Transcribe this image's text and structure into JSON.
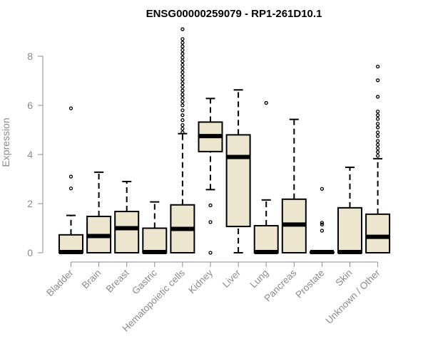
{
  "chart_data": {
    "type": "boxplot",
    "title": "ENSG00000259079 - RP1-261D10.1",
    "xlabel": "",
    "ylabel": "Expression",
    "ylim": [
      0,
      9.2
    ],
    "yticks": [
      0,
      2,
      4,
      6,
      8
    ],
    "grid": false,
    "legend": "none",
    "box_fill": "#ede6cf",
    "box_stroke": "#000000",
    "axis_color": "#8c8c8c",
    "categories": [
      "Bladder",
      "Brain",
      "Breast",
      "Gastric",
      "Hematopoietic cells",
      "Kidney",
      "Liver",
      "Lung",
      "Pancreas",
      "Prostate",
      "Skin",
      "Unknown / Other"
    ],
    "boxes": [
      {
        "whislo": 0,
        "q1": 0,
        "med": 0.03,
        "q3": 0.73,
        "whishi": 1.52,
        "fliers": [
          2.62,
          3.1,
          5.88
        ]
      },
      {
        "whislo": 0,
        "q1": 0,
        "med": 0.68,
        "q3": 1.48,
        "whishi": 3.28,
        "fliers": []
      },
      {
        "whislo": 0,
        "q1": 0,
        "med": 1.0,
        "q3": 1.68,
        "whishi": 2.9,
        "fliers": []
      },
      {
        "whislo": 0,
        "q1": 0,
        "med": 0.03,
        "q3": 1.0,
        "whishi": 2.07,
        "fliers": []
      },
      {
        "whislo": 0,
        "q1": 0,
        "med": 0.97,
        "q3": 1.95,
        "whishi": 4.85,
        "fliers": [
          4.9,
          5.05,
          5.2,
          5.4,
          5.6,
          5.8,
          6.0,
          6.15,
          6.3,
          6.45,
          6.6,
          6.75,
          6.9,
          7.05,
          7.2,
          7.35,
          7.5,
          7.65,
          7.8,
          7.95,
          8.1,
          8.25,
          8.4,
          8.55,
          8.7,
          9.1
        ]
      },
      {
        "whislo": 2.57,
        "q1": 4.12,
        "med": 4.75,
        "q3": 5.32,
        "whishi": 6.28,
        "fliers": [
          0,
          1.25,
          1.93
        ]
      },
      {
        "whislo": 0,
        "q1": 1.07,
        "med": 3.9,
        "q3": 4.8,
        "whishi": 6.63,
        "fliers": []
      },
      {
        "whislo": 0,
        "q1": 0,
        "med": 0.03,
        "q3": 1.1,
        "whishi": 2.15,
        "fliers": [
          6.1
        ]
      },
      {
        "whislo": 0,
        "q1": 0,
        "med": 1.15,
        "q3": 2.18,
        "whishi": 5.43,
        "fliers": []
      },
      {
        "whislo": 0,
        "q1": 0,
        "med": 0.03,
        "q3": 0.03,
        "whishi": 0.03,
        "fliers": [
          0.9,
          1.15,
          1.22,
          2.6
        ]
      },
      {
        "whislo": 0,
        "q1": 0,
        "med": 0.03,
        "q3": 1.83,
        "whishi": 3.48,
        "fliers": []
      },
      {
        "whislo": 0,
        "q1": 0,
        "med": 0.65,
        "q3": 1.57,
        "whishi": 3.83,
        "fliers": [
          3.95,
          4.1,
          4.25,
          4.4,
          4.55,
          4.75,
          4.9,
          5.1,
          5.25,
          5.45,
          5.6,
          5.75,
          6.35,
          7.02,
          7.58
        ]
      }
    ]
  }
}
